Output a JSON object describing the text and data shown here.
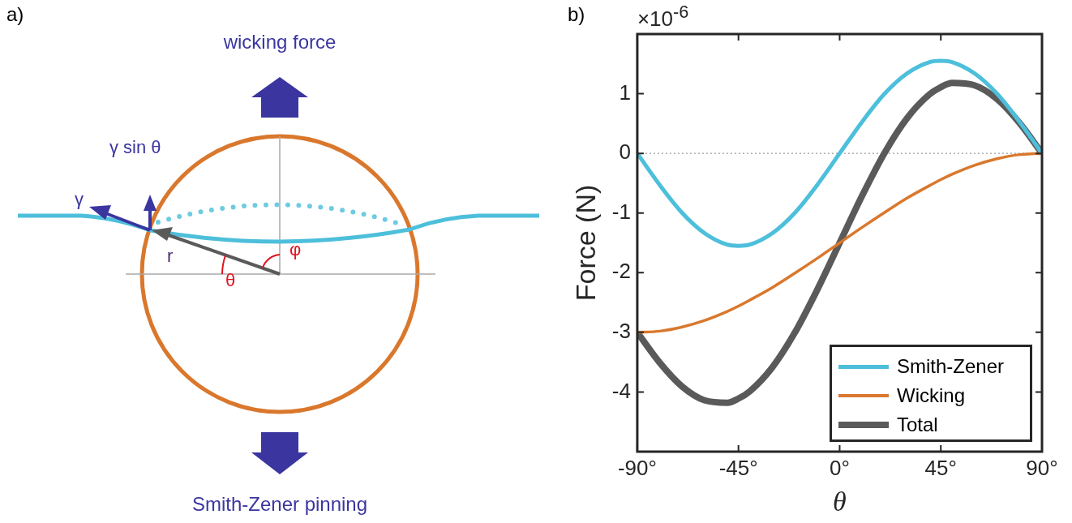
{
  "chart_data": [
    {
      "type": "other",
      "title": "a)",
      "annotations": [
        "wicking force",
        "γ sin θ",
        "γ",
        "r",
        "θ",
        "φ",
        "Smith-Zener pinning"
      ]
    },
    {
      "type": "line",
      "title": "b)",
      "xlabel": "θ",
      "ylabel": "Force (N)",
      "annotations": [
        "×10$^{-6}$"
      ],
      "x": [
        -90,
        -80,
        -70,
        -60,
        -50,
        -45,
        -40,
        -30,
        -20,
        -10,
        0,
        10,
        20,
        30,
        40,
        45,
        50,
        60,
        70,
        80,
        90
      ],
      "series": [
        {
          "name": "Smith-Zener",
          "color": "#4dbfdb",
          "values": [
            0,
            -0.53,
            -1.0,
            -1.34,
            -1.53,
            -1.55,
            -1.53,
            -1.34,
            -1.0,
            -0.53,
            0,
            0.53,
            1.0,
            1.34,
            1.53,
            1.55,
            1.53,
            1.34,
            1.0,
            0.53,
            0
          ]
        },
        {
          "name": "Wicking",
          "color": "#d9782d",
          "values": [
            -3,
            -2.98,
            -2.91,
            -2.8,
            -2.65,
            -2.56,
            -2.46,
            -2.25,
            -2.01,
            -1.76,
            -1.5,
            -1.24,
            -0.99,
            -0.75,
            -0.54,
            -0.44,
            -0.35,
            -0.2,
            -0.09,
            -0.02,
            0
          ]
        },
        {
          "name": "Total",
          "color": "#5a5a5a",
          "values": [
            -3,
            -3.51,
            -3.91,
            -4.14,
            -4.18,
            -4.11,
            -3.99,
            -3.59,
            -3.01,
            -2.29,
            -1.5,
            -0.71,
            0.01,
            0.59,
            0.99,
            1.11,
            1.18,
            1.14,
            0.91,
            0.51,
            0
          ]
        }
      ],
      "xlim": [
        -90,
        90
      ],
      "xticks": [
        {
          "value": -90,
          "label": "-90°"
        },
        {
          "value": -45,
          "label": "-45°"
        },
        {
          "value": 0,
          "label": "0°"
        },
        {
          "value": 45,
          "label": "45°"
        },
        {
          "value": 90,
          "label": "90°"
        }
      ],
      "ylim": [
        -5,
        2
      ],
      "yticks": [
        -4,
        -3,
        -2,
        -1,
        0,
        1
      ],
      "ref_lines": [
        {
          "axis": "y",
          "value": 0,
          "color": "#999999",
          "line_style": "dotted"
        }
      ],
      "grid": false,
      "legend": "bottom right",
      "marker": "none",
      "line_style": "solid"
    }
  ]
}
